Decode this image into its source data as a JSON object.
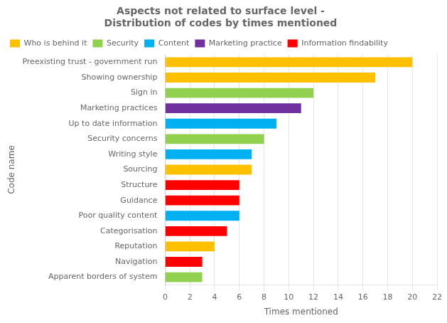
{
  "chart_data": {
    "type": "bar",
    "orientation": "horizontal",
    "title": "Aspects not related to surface level -\nDistribution of codes by times mentioned",
    "xlabel": "Times mentioned",
    "ylabel": "Code name",
    "categories": [
      "Apparent borders of system",
      "Navigation",
      "Reputation",
      "Categorisation",
      "Poor quality content",
      "Guidance",
      "Structure",
      "Sourcing",
      "Writing style",
      "Security concerns",
      "Up to date information",
      "Marketing practices",
      "Sign in",
      "Showing ownership",
      "Preexisting trust - government run"
    ],
    "series": [
      {
        "name": "Who is behind it",
        "color": "#FFC000",
        "values": [
          null,
          null,
          4,
          null,
          null,
          null,
          null,
          7,
          null,
          null,
          null,
          null,
          null,
          17,
          20
        ]
      },
      {
        "name": "Security",
        "color": "#92D050",
        "values": [
          3,
          null,
          null,
          null,
          null,
          null,
          null,
          null,
          null,
          8,
          null,
          null,
          12,
          null,
          null
        ]
      },
      {
        "name": "Content",
        "color": "#00B0F0",
        "values": [
          null,
          null,
          null,
          null,
          6,
          null,
          null,
          null,
          7,
          null,
          9,
          null,
          null,
          null,
          null
        ]
      },
      {
        "name": "Marketing practice",
        "color": "#7030A0",
        "values": [
          null,
          null,
          null,
          null,
          null,
          null,
          null,
          null,
          null,
          null,
          null,
          11,
          null,
          null,
          null
        ]
      },
      {
        "name": "Information findability",
        "color": "#FF0000",
        "values": [
          null,
          3,
          null,
          5,
          null,
          6,
          6,
          null,
          null,
          null,
          null,
          null,
          null,
          null,
          null
        ]
      }
    ],
    "xlim": [
      0,
      22
    ],
    "xticks": [
      0,
      2,
      4,
      6,
      8,
      10,
      12,
      14,
      16,
      18,
      20,
      22
    ],
    "grid": true,
    "legend": "top-left"
  }
}
